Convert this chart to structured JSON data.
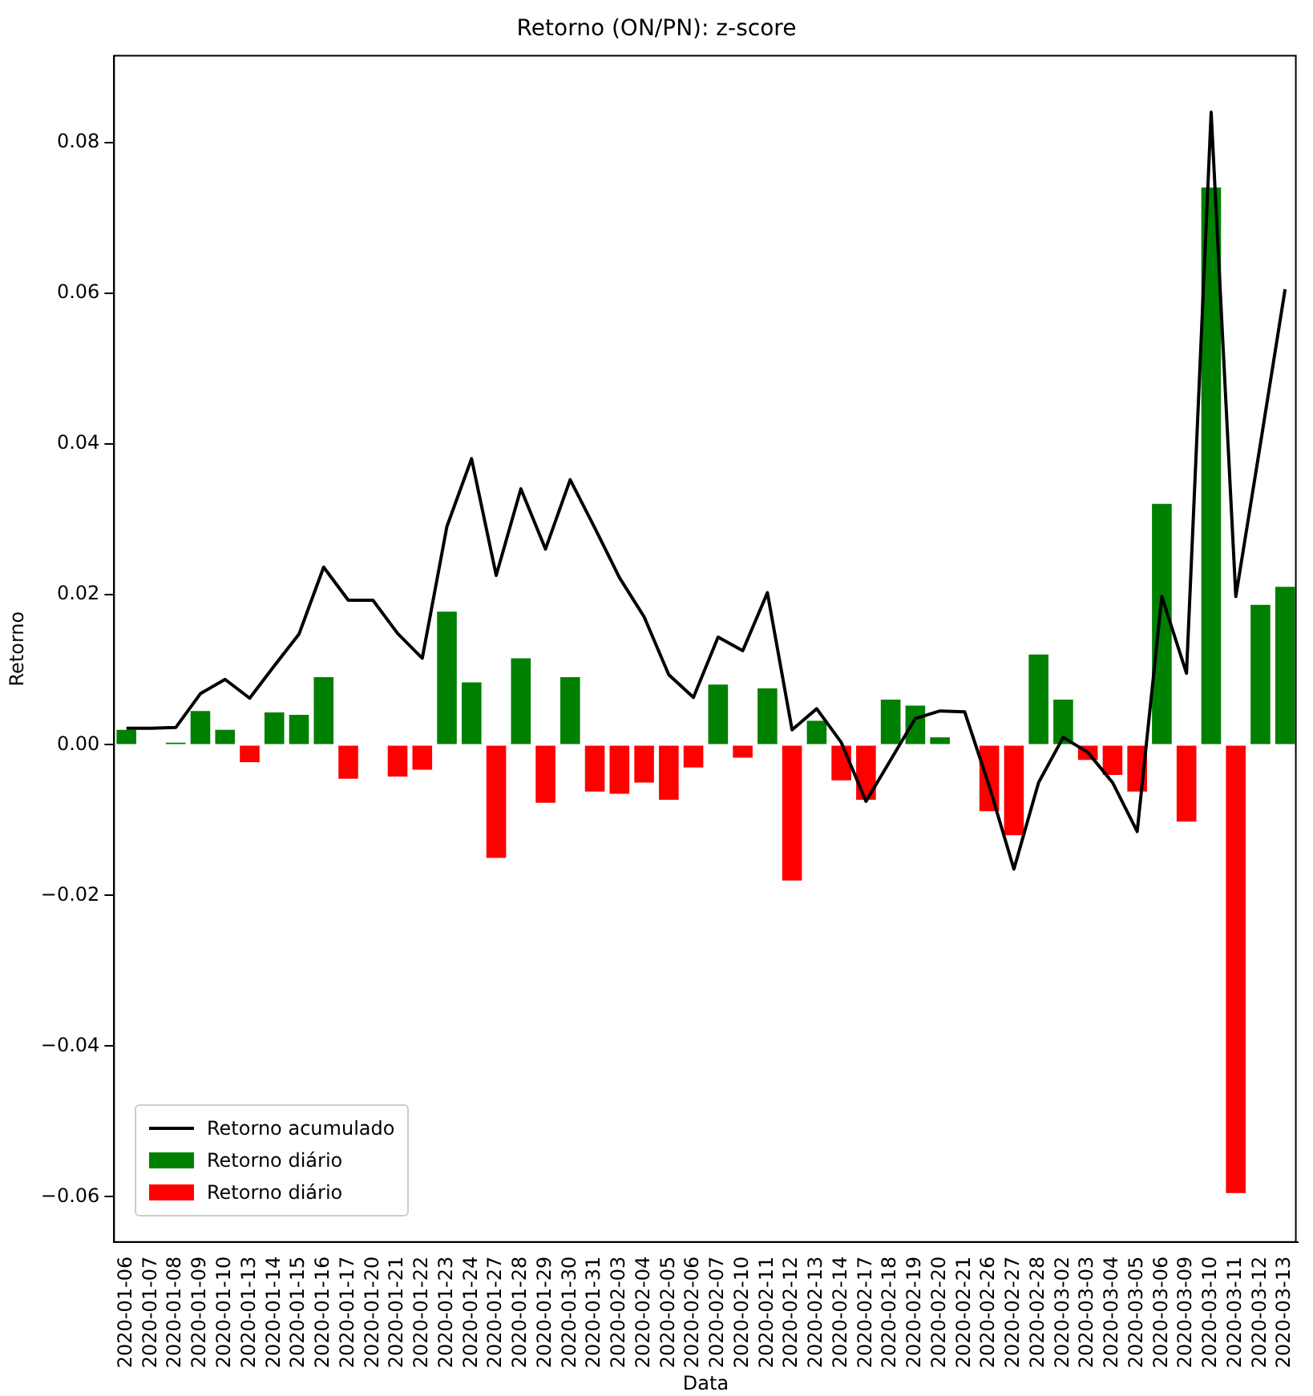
{
  "chart_data": {
    "type": "bar",
    "title": "Retorno (ON/PN): z-score",
    "xlabel": "Data",
    "ylabel": "Retorno",
    "categories": [
      "2020-01-06",
      "2020-01-07",
      "2020-01-08",
      "2020-01-09",
      "2020-01-10",
      "2020-01-13",
      "2020-01-14",
      "2020-01-15",
      "2020-01-16",
      "2020-01-17",
      "2020-01-20",
      "2020-01-21",
      "2020-01-22",
      "2020-01-23",
      "2020-01-24",
      "2020-01-27",
      "2020-01-28",
      "2020-01-29",
      "2020-01-30",
      "2020-01-31",
      "2020-02-03",
      "2020-02-04",
      "2020-02-05",
      "2020-02-06",
      "2020-02-07",
      "2020-02-10",
      "2020-02-11",
      "2020-02-12",
      "2020-02-13",
      "2020-02-14",
      "2020-02-17",
      "2020-02-18",
      "2020-02-19",
      "2020-02-20",
      "2020-02-21",
      "2020-02-26",
      "2020-02-27",
      "2020-02-28",
      "2020-03-02",
      "2020-03-03",
      "2020-03-04",
      "2020-03-05",
      "2020-03-06",
      "2020-03-09",
      "2020-03-10",
      "2020-03-11",
      "2020-03-12",
      "2020-03-13"
    ],
    "series": [
      {
        "name": "Retorno acumulado",
        "type": "line",
        "color": "#000000",
        "values": [
          0.0022,
          0.0022,
          0.0023,
          0.0068,
          0.0087,
          0.0062,
          0.0105,
          0.0147,
          0.0236,
          0.0192,
          0.0192,
          0.0148,
          0.0115,
          0.029,
          0.038,
          0.0225,
          0.034,
          0.026,
          0.0352,
          0.0288,
          0.0222,
          0.017,
          0.0093,
          0.0063,
          0.0143,
          0.0125,
          0.0202,
          0.002,
          0.0048,
          0.0003,
          -0.0075,
          -0.002,
          0.0035,
          0.0045,
          0.0044,
          -0.0055,
          -0.0165,
          -0.005,
          0.001,
          -0.001,
          -0.005,
          -0.0115,
          0.0197,
          0.0095,
          0.084,
          0.0197,
          0.04,
          0.0605
        ]
      },
      {
        "name": "Retorno diário",
        "color": "#008000",
        "values": [
          0.002,
          null,
          0.0003,
          0.0045,
          0.002,
          null,
          0.0043,
          0.004,
          0.009,
          null,
          null,
          null,
          null,
          0.0177,
          0.0083,
          null,
          0.0115,
          null,
          0.009,
          null,
          null,
          null,
          null,
          null,
          0.008,
          null,
          0.0075,
          null,
          0.0032,
          null,
          null,
          0.006,
          0.0052,
          0.001,
          null,
          null,
          null,
          0.012,
          0.006,
          null,
          null,
          null,
          0.032,
          null,
          0.074,
          null,
          0.0186,
          0.021
        ]
      },
      {
        "name": "Retorno diário",
        "color": "#ff0000",
        "values": [
          null,
          null,
          null,
          null,
          null,
          -0.0023,
          null,
          null,
          null,
          -0.0045,
          null,
          -0.0042,
          -0.0033,
          null,
          null,
          -0.015,
          null,
          -0.0077,
          null,
          -0.0062,
          -0.0065,
          -0.005,
          -0.0073,
          -0.003,
          null,
          -0.0017,
          null,
          -0.018,
          null,
          -0.0047,
          -0.0073,
          null,
          null,
          null,
          null,
          -0.0088,
          -0.012,
          null,
          null,
          -0.002,
          -0.004,
          -0.0062,
          null,
          -0.0102,
          null,
          -0.0595,
          null,
          null
        ]
      }
    ],
    "ylim": [
      -0.066,
      0.0915
    ],
    "yticks": [
      {
        "value": -0.06,
        "label": "−0.06"
      },
      {
        "value": -0.04,
        "label": "−0.04"
      },
      {
        "value": -0.02,
        "label": "−0.02"
      },
      {
        "value": 0,
        "label": "0.00"
      },
      {
        "value": 0.02,
        "label": "0.02"
      },
      {
        "value": 0.04,
        "label": "0.04"
      },
      {
        "value": 0.06,
        "label": "0.06"
      },
      {
        "value": 0.08,
        "label": "0.08"
      }
    ],
    "grid": false,
    "legend": "bottom left"
  }
}
